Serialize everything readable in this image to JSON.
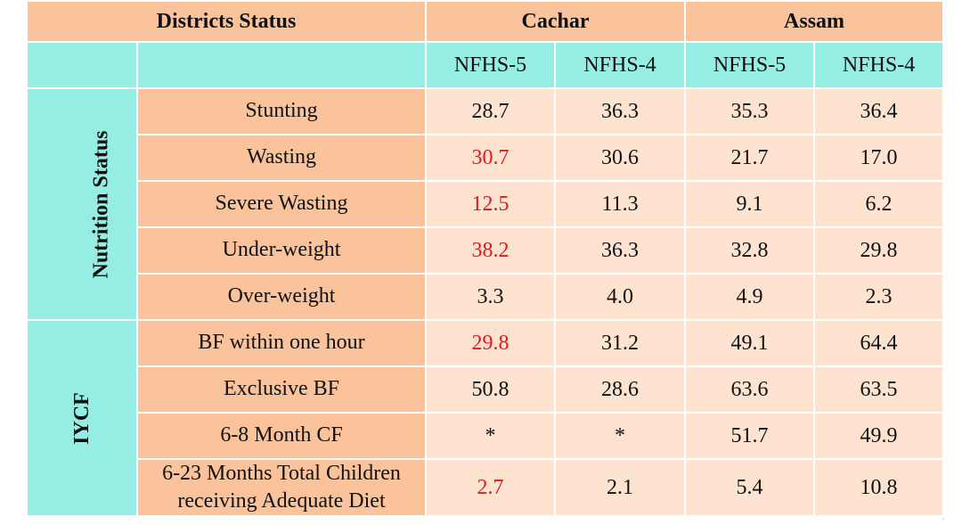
{
  "header": {
    "title": "Districts Status",
    "cachar": "Cachar",
    "assam": "Assam"
  },
  "subheader": {
    "cachar_nfhs5": "NFHS-5",
    "cachar_nfhs4": "NFHS-4",
    "assam_nfhs5": "NFHS-5",
    "assam_nfhs4": "NFHS-4"
  },
  "sections": {
    "nutrition": "Nutrition Status",
    "iycf": "IYCF"
  },
  "rows": [
    {
      "label": "Stunting",
      "c5": "28.7",
      "c4": "36.3",
      "a5": "35.3",
      "a4": "36.4"
    },
    {
      "label": "Wasting",
      "c5": "30.7",
      "c4": "30.6",
      "a5": "21.7",
      "a4": "17.0"
    },
    {
      "label": "Severe Wasting",
      "c5": "12.5",
      "c4": "11.3",
      "a5": "9.1",
      "a4": "6.2"
    },
    {
      "label": "Under-weight",
      "c5": "38.2",
      "c4": "36.3",
      "a5": "32.8",
      "a4": "29.8"
    },
    {
      "label": "Over-weight",
      "c5": "3.3",
      "c4": "4.0",
      "a5": "4.9",
      "a4": "2.3"
    },
    {
      "label": "BF within one hour",
      "c5": "29.8",
      "c4": "31.2",
      "a5": "49.1",
      "a4": "64.4"
    },
    {
      "label": "Exclusive BF",
      "c5": "50.8",
      "c4": "28.6",
      "a5": "63.6",
      "a4": "63.5"
    },
    {
      "label": "6-8 Month CF",
      "c5": "*",
      "c4": "*",
      "a5": "51.7",
      "a4": "49.9"
    },
    {
      "label_line1": "6-23 Months Total Children",
      "label_line2": "receiving Adequate Diet",
      "c5": "2.7",
      "c4": "2.1",
      "a5": "5.4",
      "a4": "10.8"
    }
  ],
  "colors": {
    "header_orange": "#fbc39b",
    "header_teal": "#95ede3",
    "cell_light": "#fde3d0",
    "highlight_red": "#e0191c"
  }
}
